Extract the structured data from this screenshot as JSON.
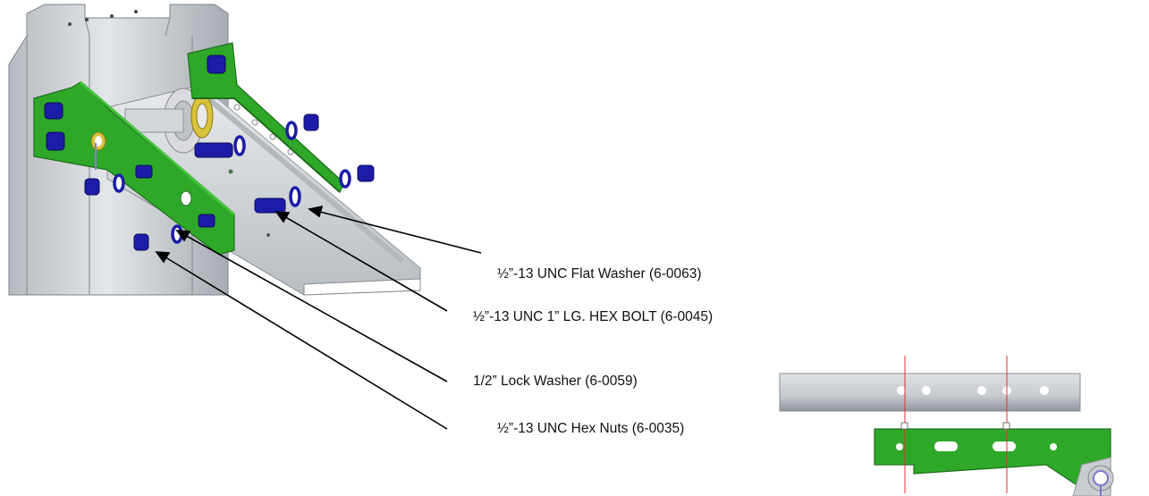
{
  "callouts": [
    {
      "id": "flat-washer",
      "text": "½”-13 UNC Flat Washer (6-0063)"
    },
    {
      "id": "hex-bolt",
      "text": "½”-13 UNC 1” LG. HEX BOLT (6-0045)"
    },
    {
      "id": "lock-washer",
      "text": "1/2” Lock Washer (6-0059)"
    },
    {
      "id": "hex-nuts",
      "text": "½”-13 UNC Hex Nuts (6-0035)"
    }
  ],
  "colors": {
    "bracket_green": "#2fa82a",
    "bracket_dark": "#1d6e1a",
    "steel": "#c9cdd2",
    "steel_shadow": "#9aa0a6",
    "hardware_blue": "#1c1ca8",
    "brass": "#d8c23a",
    "guide_red": "#e03030"
  }
}
